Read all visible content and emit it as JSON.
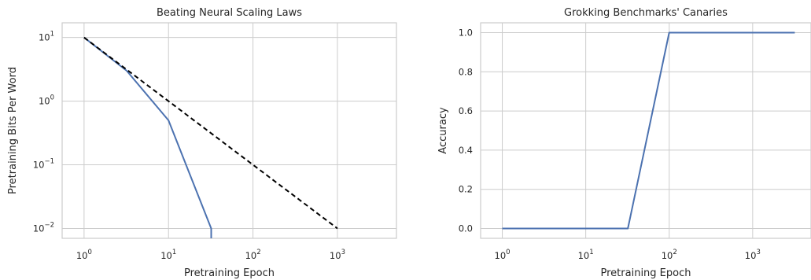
{
  "chart_data": [
    {
      "type": "line",
      "title": "Beating Neural Scaling Laws",
      "xlabel": "Pretraining Epoch",
      "ylabel": "Pretraining Bits Per Word",
      "xscale": "log",
      "yscale": "log",
      "xlim": [
        0.55,
        5000
      ],
      "ylim": [
        0.007,
        17
      ],
      "xticks": [
        1,
        10,
        100,
        1000
      ],
      "xtick_labels": [
        {
          "base": "10",
          "exp": "0"
        },
        {
          "base": "10",
          "exp": "1"
        },
        {
          "base": "10",
          "exp": "2"
        },
        {
          "base": "10",
          "exp": "3"
        }
      ],
      "yticks": [
        10,
        1,
        0.1,
        0.01
      ],
      "ytick_labels": [
        {
          "base": "10",
          "exp": "1"
        },
        {
          "base": "10",
          "exp": "0"
        },
        {
          "base": "10",
          "exp": "−1"
        },
        {
          "base": "10",
          "exp": "−2"
        }
      ],
      "grid": true,
      "series": [
        {
          "color": "#4c72b0",
          "style": "solid",
          "x": [
            1,
            3.2,
            10,
            32,
            32
          ],
          "y": [
            10,
            3,
            0.5,
            0.01,
            0.007
          ]
        },
        {
          "color": "#000000",
          "style": "dashed",
          "x": [
            1,
            1000
          ],
          "y": [
            10,
            0.01
          ]
        }
      ]
    },
    {
      "type": "line",
      "title": "Grokking Benchmarks' Canaries",
      "xlabel": "Pretraining Epoch",
      "ylabel": "Accuracy",
      "xscale": "log",
      "yscale": "linear",
      "xlim": [
        0.55,
        5000
      ],
      "ylim": [
        -0.05,
        1.05
      ],
      "xticks": [
        1,
        10,
        100,
        1000
      ],
      "xtick_labels": [
        {
          "base": "10",
          "exp": "0"
        },
        {
          "base": "10",
          "exp": "1"
        },
        {
          "base": "10",
          "exp": "2"
        },
        {
          "base": "10",
          "exp": "3"
        }
      ],
      "yticks": [
        0.0,
        0.2,
        0.4,
        0.6,
        0.8,
        1.0
      ],
      "ytick_labels": [
        "0.0",
        "0.2",
        "0.4",
        "0.6",
        "0.8",
        "1.0"
      ],
      "grid": true,
      "series": [
        {
          "color": "#4c72b0",
          "style": "solid",
          "x": [
            1,
            32,
            100,
            3200
          ],
          "y": [
            0,
            0,
            1,
            1
          ]
        }
      ]
    }
  ]
}
